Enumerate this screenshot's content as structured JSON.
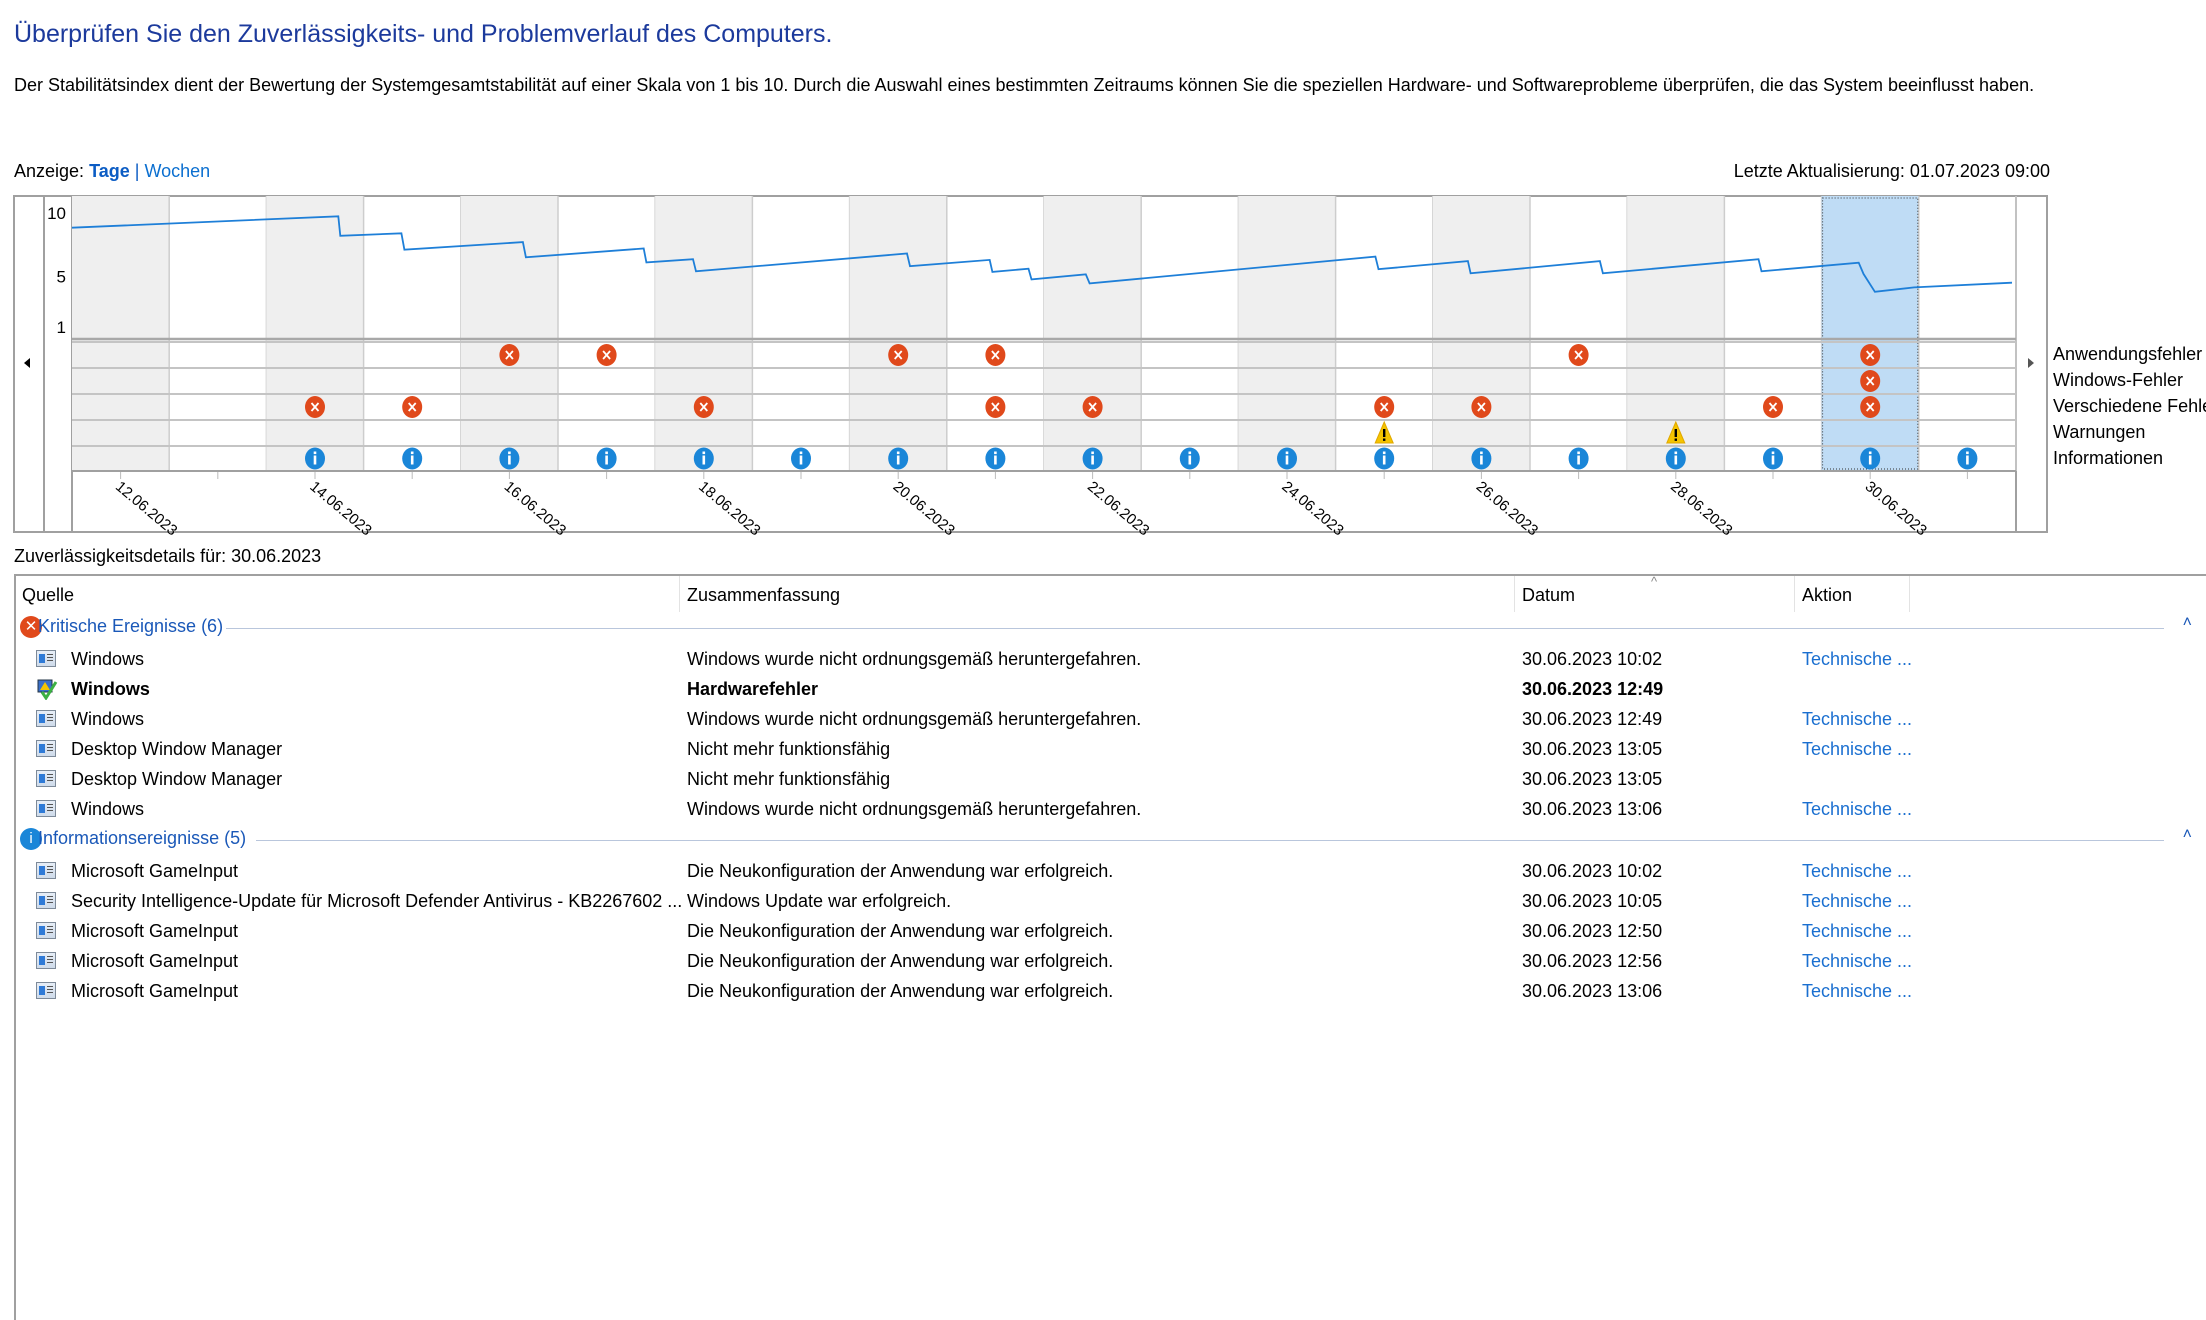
{
  "header": {
    "title": "Überprüfen Sie den Zuverlässigkeits- und Problemverlauf des Computers.",
    "description": "Der Stabilitätsindex dient der Bewertung der Systemgesamtstabilität auf einer Skala von 1 bis 10. Durch die Auswahl eines bestimmten Zeitraums können Sie die speziellen Hardware- und Softwareprobleme überprüfen, die das System beeinflusst haben.",
    "view_label": "Anzeige:",
    "view_selected": "Tage",
    "view_separator": "|",
    "view_other": "Wochen",
    "last_update": "Letzte Aktualisierung: 01.07.2023 09:00"
  },
  "chart_data": {
    "type": "line",
    "y_ticks": [
      "10",
      "5",
      "1"
    ],
    "ylim": [
      1,
      10
    ],
    "days": [
      "12.06.2023",
      "13.06.2023",
      "14.06.2023",
      "15.06.2023",
      "16.06.2023",
      "17.06.2023",
      "18.06.2023",
      "19.06.2023",
      "20.06.2023",
      "21.06.2023",
      "22.06.2023",
      "23.06.2023",
      "24.06.2023",
      "25.06.2023",
      "26.06.2023",
      "27.06.2023",
      "28.06.2023",
      "29.06.2023",
      "30.06.2023",
      "01.07.2023"
    ],
    "x_tick_labels": [
      "12.06.2023",
      "14.06.2023",
      "16.06.2023",
      "18.06.2023",
      "20.06.2023",
      "22.06.2023",
      "24.06.2023",
      "26.06.2023",
      "28.06.2023",
      "30.06.2023"
    ],
    "selected_day": "30.06.2023",
    "series": [
      {
        "points": [
          [
            "2023-06-12T00:00",
            8.84
          ],
          [
            "2023-06-14T17:45",
            9.74
          ],
          [
            "2023-06-14T18:15",
            8.2
          ],
          [
            "2023-06-15T09:20",
            8.4
          ],
          [
            "2023-06-15T10:05",
            7.1
          ],
          [
            "2023-06-16T15:20",
            7.7
          ],
          [
            "2023-06-16T16:05",
            6.5
          ],
          [
            "2023-06-17T21:10",
            7.2
          ],
          [
            "2023-06-17T21:50",
            6.1
          ],
          [
            "2023-06-18T09:20",
            6.35
          ],
          [
            "2023-06-18T10:05",
            5.4
          ],
          [
            "2023-06-20T14:10",
            6.8
          ],
          [
            "2023-06-20T14:55",
            5.8
          ],
          [
            "2023-06-21T10:35",
            6.3
          ],
          [
            "2023-06-21T11:15",
            5.35
          ],
          [
            "2023-06-21T20:10",
            5.6
          ],
          [
            "2023-06-21T20:55",
            4.76
          ],
          [
            "2023-06-22T10:20",
            5.16
          ],
          [
            "2023-06-22T11:15",
            4.44
          ],
          [
            "2023-06-25T09:50",
            6.56
          ],
          [
            "2023-06-25T10:35",
            5.56
          ],
          [
            "2023-06-26T08:40",
            6.2
          ],
          [
            "2023-06-26T09:20",
            5.24
          ],
          [
            "2023-06-27T17:15",
            6.2
          ],
          [
            "2023-06-27T18:00",
            5.24
          ],
          [
            "2023-06-29T08:25",
            6.35
          ],
          [
            "2023-06-29T09:10",
            5.4
          ],
          [
            "2023-06-30T09:10",
            6.08
          ],
          [
            "2023-06-30T10:20",
            5.19
          ],
          [
            "2023-06-30T13:10",
            3.78
          ],
          [
            "2023-06-30T22:50",
            4.13
          ],
          [
            "2023-07-01T23:00",
            4.5
          ]
        ]
      }
    ],
    "event_rows": [
      {
        "label": "Anwendungsfehler",
        "icon": "error",
        "days": [
          "16.06.2023",
          "17.06.2023",
          "20.06.2023",
          "21.06.2023",
          "27.06.2023",
          "30.06.2023"
        ]
      },
      {
        "label": "Windows-Fehler",
        "icon": "error",
        "days": [
          "30.06.2023"
        ]
      },
      {
        "label": "Verschiedene Fehler",
        "icon": "error",
        "days": [
          "14.06.2023",
          "15.06.2023",
          "18.06.2023",
          "21.06.2023",
          "22.06.2023",
          "25.06.2023",
          "26.06.2023",
          "29.06.2023",
          "30.06.2023"
        ]
      },
      {
        "label": "Warnungen",
        "icon": "warning",
        "days": [
          "25.06.2023",
          "28.06.2023"
        ]
      },
      {
        "label": "Informationen",
        "icon": "info",
        "days": [
          "14.06.2023",
          "15.06.2023",
          "16.06.2023",
          "17.06.2023",
          "18.06.2023",
          "19.06.2023",
          "20.06.2023",
          "21.06.2023",
          "22.06.2023",
          "23.06.2023",
          "24.06.2023",
          "25.06.2023",
          "26.06.2023",
          "27.06.2023",
          "28.06.2023",
          "29.06.2023",
          "30.06.2023",
          "01.07.2023"
        ]
      }
    ],
    "colors": {
      "line": "#1e7fd8",
      "error": "#e0491b",
      "warning": "#f5c400",
      "info": "#1a86d8",
      "shade": "#efefef",
      "selection": "#bfdcf5"
    }
  },
  "details": {
    "label": "Zuverlässigkeitsdetails für: 30.06.2023",
    "columns": [
      "Quelle",
      "Zusammenfassung",
      "Datum",
      "Aktion"
    ],
    "groups": [
      {
        "title": "Kritische Ereignisse (6)",
        "icon": "error",
        "rows": [
          {
            "source": "Windows",
            "summary": "Windows wurde nicht ordnungsgemäß heruntergefahren.",
            "date": "30.06.2023 10:02",
            "action": "Technische ...",
            "icon": "app"
          },
          {
            "source": "Windows",
            "summary": "Hardwarefehler",
            "date": "30.06.2023 12:49",
            "action": "",
            "icon": "hardware",
            "bold": true
          },
          {
            "source": "Windows",
            "summary": "Windows wurde nicht ordnungsgemäß heruntergefahren.",
            "date": "30.06.2023 12:49",
            "action": "Technische ...",
            "icon": "app"
          },
          {
            "source": "Desktop Window Manager",
            "summary": "Nicht mehr funktionsfähig",
            "date": "30.06.2023 13:05",
            "action": "Technische ...",
            "icon": "app"
          },
          {
            "source": "Desktop Window Manager",
            "summary": "Nicht mehr funktionsfähig",
            "date": "30.06.2023 13:05",
            "action": "",
            "icon": "app"
          },
          {
            "source": "Windows",
            "summary": "Windows wurde nicht ordnungsgemäß heruntergefahren.",
            "date": "30.06.2023 13:06",
            "action": "Technische ...",
            "icon": "app"
          }
        ]
      },
      {
        "title": "Informationsereignisse (5)",
        "icon": "info",
        "rows": [
          {
            "source": "Microsoft GameInput",
            "summary": "Die Neukonfiguration der Anwendung war erfolgreich.",
            "date": "30.06.2023 10:02",
            "action": "Technische ...",
            "icon": "app"
          },
          {
            "source": "Security Intelligence-Update für Microsoft Defender Antivirus - KB2267602 ...",
            "summary": "Windows Update war erfolgreich.",
            "date": "30.06.2023 10:05",
            "action": "Technische ...",
            "icon": "app"
          },
          {
            "source": "Microsoft GameInput",
            "summary": "Die Neukonfiguration der Anwendung war erfolgreich.",
            "date": "30.06.2023 12:50",
            "action": "Technische ...",
            "icon": "app"
          },
          {
            "source": "Microsoft GameInput",
            "summary": "Die Neukonfiguration der Anwendung war erfolgreich.",
            "date": "30.06.2023 12:56",
            "action": "Technische ...",
            "icon": "app"
          },
          {
            "source": "Microsoft GameInput",
            "summary": "Die Neukonfiguration der Anwendung war erfolgreich.",
            "date": "30.06.2023 13:06",
            "action": "Technische ...",
            "icon": "app"
          }
        ]
      }
    ]
  }
}
